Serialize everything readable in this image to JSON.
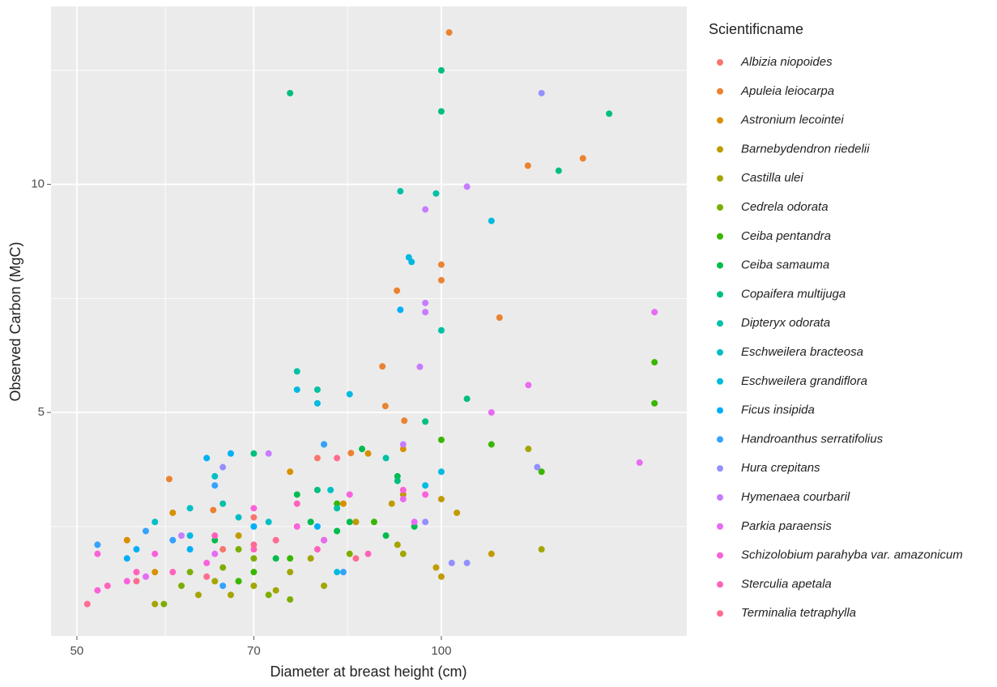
{
  "chart_data": {
    "type": "scatter",
    "x_label": "Diameter at breast height (cm)",
    "y_label": "Observed Carbon (MgC)",
    "legend_title": "Scientificname",
    "xscale": "log",
    "xlim": [
      47.6,
      159.5
    ],
    "xticks": [
      50,
      70,
      100
    ],
    "ylim": [
      0.1,
      13.9
    ],
    "yticks": [
      5,
      10
    ],
    "grid": true,
    "series": [
      {
        "name": "Albizia niopoides",
        "color": "#F8766D",
        "x": [
          70,
          79,
          66
        ],
        "values": [
          2.7,
          4.0,
          2.0
        ]
      },
      {
        "name": "Apuleia leiocarpa",
        "color": "#EA8331",
        "x": [
          101.5,
          117.9,
          130.9,
          100,
          100,
          91.9,
          111.7,
          89.4,
          89.9,
          93.2,
          84.2,
          59.6,
          64.8
        ],
        "values": [
          13.33,
          10.41,
          10.57,
          8.24,
          7.9,
          7.67,
          7.08,
          6.01,
          5.14,
          4.82,
          4.11,
          3.54,
          2.86
        ]
      },
      {
        "name": "Astronium lecointei",
        "color": "#D89000",
        "x": [
          87,
          83,
          60,
          55,
          58,
          75,
          93
        ],
        "values": [
          4.1,
          3.0,
          2.8,
          2.2,
          1.5,
          3.7,
          4.2
        ]
      },
      {
        "name": "Barnebydendron riedelii",
        "color": "#C09B00",
        "x": [
          100,
          103,
          91,
          93,
          99,
          100,
          110,
          85,
          68
        ],
        "values": [
          3.1,
          2.8,
          3.0,
          3.2,
          1.6,
          1.4,
          1.9,
          2.6,
          2.3
        ]
      },
      {
        "name": "Castilla ulei",
        "color": "#A3A500",
        "x": [
          118,
          92,
          93,
          73,
          70,
          65,
          58,
          63,
          67,
          75,
          80,
          78,
          80,
          121
        ],
        "values": [
          4.2,
          2.1,
          1.9,
          1.1,
          1.2,
          1.3,
          0.8,
          1.0,
          1.0,
          1.5,
          1.2,
          1.8,
          2.2,
          2.0
        ]
      },
      {
        "name": "Cedrela odorata",
        "color": "#7CAE00",
        "x": [
          61,
          66,
          68,
          72,
          70,
          75,
          84,
          62,
          68,
          59
        ],
        "values": [
          1.2,
          1.6,
          1.3,
          1.0,
          1.8,
          0.9,
          1.9,
          1.5,
          2.0,
          0.8
        ]
      },
      {
        "name": "Ceiba pentandra",
        "color": "#39B600",
        "x": [
          150,
          150,
          121,
          100,
          110,
          70,
          75,
          68,
          82,
          88
        ],
        "values": [
          6.1,
          5.2,
          3.7,
          4.4,
          4.3,
          1.5,
          1.8,
          1.3,
          3.0,
          2.6
        ]
      },
      {
        "name": "Ceiba samauma",
        "color": "#00BB4E",
        "x": [
          80,
          92,
          95,
          78,
          84,
          73,
          65,
          82,
          90,
          76,
          86
        ],
        "values": [
          4.3,
          3.6,
          2.5,
          2.6,
          2.6,
          1.8,
          2.2,
          2.4,
          2.3,
          3.2,
          4.2
        ]
      },
      {
        "name": "Copaifera multijuga",
        "color": "#00BF7D",
        "x": [
          75,
          100,
          137.6,
          100,
          125,
          105,
          97,
          79,
          92,
          70
        ],
        "values": [
          12.0,
          12.5,
          11.55,
          11.6,
          10.3,
          5.3,
          4.8,
          3.3,
          3.5,
          4.1
        ]
      },
      {
        "name": "Dipteryx odorata",
        "color": "#00C1A3",
        "x": [
          92.5,
          99,
          100,
          76,
          79,
          90,
          82,
          66
        ],
        "values": [
          9.85,
          9.8,
          6.8,
          5.9,
          5.5,
          4.0,
          2.9,
          3.0
        ]
      },
      {
        "name": "Eschweilera bracteosa",
        "color": "#00BFC4",
        "x": [
          62,
          65,
          68,
          81,
          72,
          58
        ],
        "values": [
          2.9,
          3.6,
          2.7,
          3.3,
          2.6,
          2.6
        ]
      },
      {
        "name": "Eschweilera grandiflora",
        "color": "#00BAE0",
        "x": [
          110,
          94,
          94.5,
          76,
          79,
          84,
          97,
          100,
          82,
          62
        ],
        "values": [
          9.2,
          8.4,
          8.3,
          5.5,
          5.2,
          5.4,
          3.4,
          3.7,
          1.5,
          2.3
        ]
      },
      {
        "name": "Ficus insipida",
        "color": "#00B0F6",
        "x": [
          92.5,
          64,
          67,
          70,
          79,
          55,
          56,
          62
        ],
        "values": [
          7.25,
          4.0,
          4.1,
          2.5,
          2.5,
          1.8,
          2.0,
          2.0
        ]
      },
      {
        "name": "Handroanthus serratifolius",
        "color": "#35A2FF",
        "x": [
          52,
          57,
          60,
          65,
          83,
          66,
          80
        ],
        "values": [
          2.1,
          2.4,
          2.2,
          3.4,
          1.5,
          1.2,
          4.3
        ]
      },
      {
        "name": "Hura crepitans",
        "color": "#9590FF",
        "x": [
          121,
          120,
          97,
          102,
          105,
          66
        ],
        "values": [
          12.0,
          3.8,
          2.6,
          1.7,
          1.7,
          3.8
        ]
      },
      {
        "name": "Hymenaea courbaril",
        "color": "#C77CFF",
        "x": [
          105,
          97,
          97,
          97,
          96,
          72,
          93,
          61
        ],
        "values": [
          9.95,
          9.45,
          7.4,
          7.2,
          6.0,
          4.1,
          4.3,
          2.3
        ]
      },
      {
        "name": "Parkia paraensis",
        "color": "#E76BF3",
        "x": [
          150,
          118,
          110,
          145.8,
          95,
          93,
          80,
          65,
          57
        ],
        "values": [
          7.2,
          5.6,
          5.0,
          3.9,
          2.6,
          3.1,
          2.2,
          1.9,
          1.4
        ]
      },
      {
        "name": "Schizolobium parahyba var. amazonicum",
        "color": "#FA62DB",
        "x": [
          52,
          55,
          52,
          58,
          64,
          70,
          76,
          84,
          93,
          97
        ],
        "values": [
          1.1,
          1.3,
          1.9,
          1.9,
          1.7,
          2.9,
          2.5,
          3.2,
          3.3,
          3.2
        ]
      },
      {
        "name": "Sterculia apetala",
        "color": "#FF62BC",
        "x": [
          53,
          56,
          60,
          65,
          70,
          79,
          87,
          76
        ],
        "values": [
          1.2,
          1.5,
          1.5,
          2.3,
          2.0,
          2.0,
          1.9,
          3.0
        ]
      },
      {
        "name": "Terminalia tetraphylla",
        "color": "#FF6C91",
        "x": [
          51,
          56,
          64,
          70,
          73,
          82,
          85
        ],
        "values": [
          0.8,
          1.3,
          1.4,
          2.1,
          2.2,
          4.0,
          1.8
        ]
      }
    ]
  }
}
